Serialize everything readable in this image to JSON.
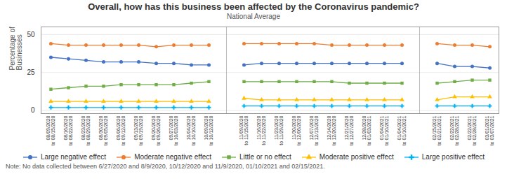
{
  "chart_data": {
    "type": "line",
    "title": "Overall, how has this business been affected by the Coronavirus pandemic?",
    "subtitle": "National Average",
    "ylabel": "Percentage of\nBusinesses",
    "note": "Note: No data collected between 6/27/2020 and 8/9/2020, 10/12/2020 and 11/9/2020, 01/10/2021 and 02/15/2021.",
    "categories": [
      "08/09/2020\nto 08/15/2020",
      "08/16/2020\nto 08/22/2020",
      "08/23/2020\nto 08/29/2020",
      "08/30/2020\nto 09/05/2020",
      "09/06/2020\nto 09/12/2020",
      "09/13/2020\nto 09/19/2020",
      "09/20/2020\nto 09/26/2020",
      "09/27/2020\nto 10/03/2020",
      "10/04/2020\nto 10/10/2020",
      "10/09/2020\nto 10/12/2020",
      null,
      "11/09/2020\nto 11/15/2020",
      "11/16/2020\nto 11/22/2020",
      "11/23/2020\nto 11/29/2020",
      "11/30/2020\nto 12/06/2020",
      "12/07/2020\nto 12/13/2020",
      "12/14/2020\nto 12/20/2020",
      "12/21/2020\nto 12/27/2020",
      "12/28/2020\nto 01/03/2021",
      "01/04/2021\nto 01/10/2021",
      "01/04/2021\nto 01/10/2021",
      null,
      "02/15/2021\nto 02/21/2021",
      "02/22/2021\nto 02/28/2021",
      "02/22/2021\nto 02/28/2021",
      "03/01/2021\nto 03/07/2021"
    ],
    "series": [
      {
        "name": "Large negative effect",
        "color": "#4472C4",
        "marker": "circle",
        "values": [
          35,
          34,
          33,
          32,
          32,
          32,
          31,
          31,
          30,
          30,
          null,
          30,
          31,
          31,
          31,
          31,
          31,
          31,
          31,
          31,
          31,
          null,
          31,
          29,
          29,
          28
        ]
      },
      {
        "name": "Moderate negative effect",
        "color": "#ED7D31",
        "marker": "circle",
        "values": [
          44,
          43,
          43,
          43,
          43,
          43,
          42,
          43,
          43,
          43,
          null,
          44,
          44,
          44,
          44,
          44,
          43,
          43,
          43,
          43,
          43,
          null,
          44,
          43,
          43,
          42
        ]
      },
      {
        "name": "Little or no effect",
        "color": "#70AD47",
        "marker": "square",
        "values": [
          14,
          15,
          16,
          16,
          17,
          17,
          17,
          17,
          18,
          19,
          null,
          19,
          19,
          19,
          19,
          19,
          19,
          18,
          18,
          18,
          18,
          null,
          18,
          19,
          20,
          20
        ]
      },
      {
        "name": "Moderate positive effect",
        "color": "#FFC000",
        "marker": "triangle",
        "values": [
          6,
          6,
          6,
          6,
          6,
          6,
          6,
          6,
          6,
          6,
          null,
          8,
          7,
          7,
          7,
          7,
          7,
          7,
          7,
          7,
          7,
          null,
          7,
          9,
          9,
          9
        ]
      },
      {
        "name": "Large positive effect",
        "color": "#00B0F0",
        "marker": "plus",
        "values": [
          2,
          2,
          2,
          2,
          2,
          2,
          2,
          2,
          2,
          2,
          null,
          3,
          3,
          3,
          3,
          3,
          3,
          3,
          3,
          3,
          3,
          null,
          3,
          3,
          3,
          3
        ]
      }
    ],
    "ylim": [
      -2,
      55
    ],
    "yticks": [
      0,
      25,
      50
    ],
    "grid": true,
    "legend": "bottom"
  }
}
